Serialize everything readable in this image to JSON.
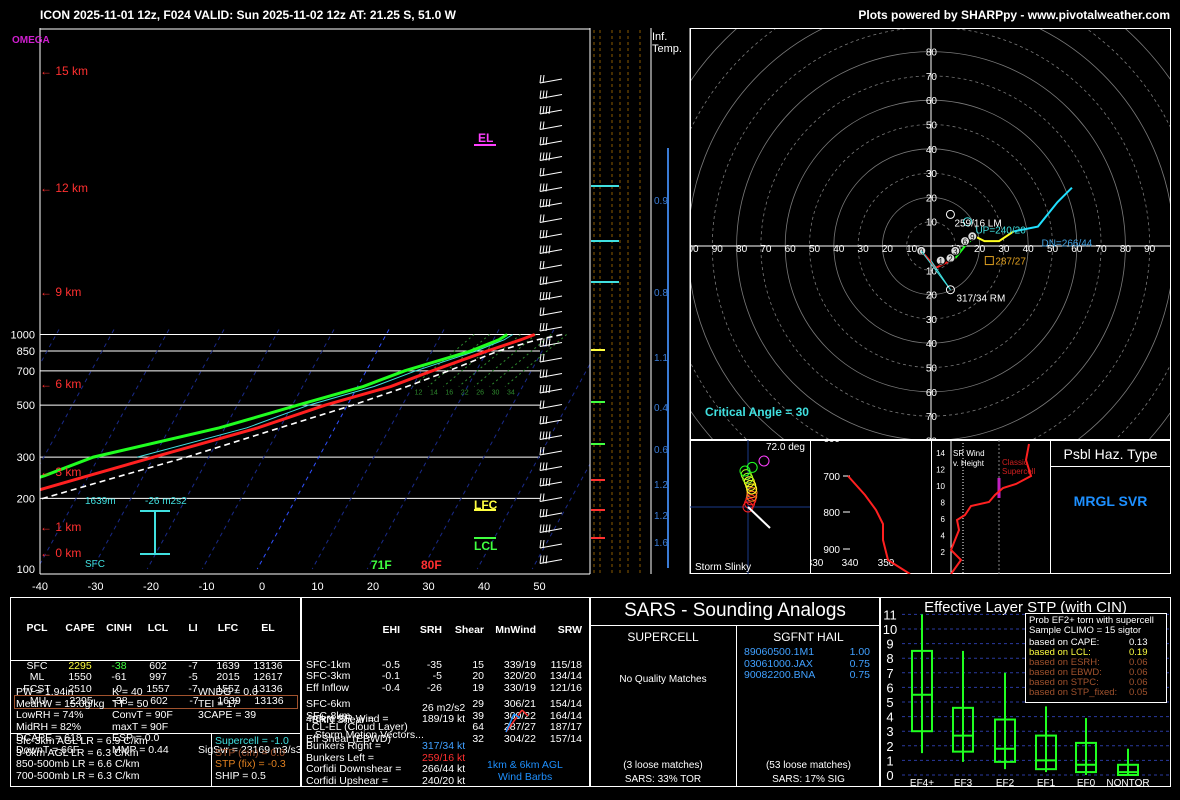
{
  "header": {
    "left": "ICON 2025-11-01 12z, F024  VALID: Sun 2025-11-02 12z  AT: 21.25 S, 51.0 W",
    "right": "Plots powered by SHARPpy - www.pivotalweather.com"
  },
  "skewt": {
    "omega_label": "OMEGA",
    "inf_temp_label": [
      "Inf.",
      "Temp."
    ],
    "pressure_ticks": [
      "100",
      "200",
      "300",
      "500",
      "700",
      "850",
      "1000"
    ],
    "temp_ticks": [
      "-40",
      "-30",
      "-20",
      "-10",
      "0",
      "10",
      "20",
      "30",
      "40",
      "50"
    ],
    "height_labels": [
      "15 km",
      "12 km",
      "9 km",
      "6 km",
      "3 km",
      "1 km",
      "0 km"
    ],
    "el_label": "EL",
    "lfc_label": "LFC",
    "lcl_label": "LCL",
    "sfc_label": "SFC",
    "srh_height": "1639m",
    "srh_value": "-26 m2s2",
    "sfc_td": "71F",
    "sfc_t": "80F",
    "mixing_ratio_labels": [
      "12",
      "14",
      "16",
      "22",
      "26",
      "30",
      "34"
    ],
    "inf_values": [
      "0.9",
      "0.8",
      "1.1",
      "0.4",
      "0.6",
      "1.2",
      "1.2",
      "1.6"
    ]
  },
  "hodograph": {
    "x_ticks_left": [
      "00",
      "90",
      "80",
      "70",
      "60",
      "50",
      "40",
      "30",
      "20",
      "10"
    ],
    "x_ticks_right": [
      "10",
      "20",
      "30",
      "40",
      "50",
      "60",
      "70",
      "80",
      "90",
      "1"
    ],
    "y_ticks_up": [
      "80",
      "70",
      "60",
      "50",
      "40",
      "30",
      "20",
      "10"
    ],
    "y_ticks_down": [
      "10",
      "20",
      "30",
      "40",
      "50",
      "60",
      "70",
      "80"
    ],
    "up_label": "UP=240/20",
    "dn_label": "DN=266/44",
    "lm_label": "259/16 LM",
    "mean_label": "287/27",
    "rm_label": "317/34 RM",
    "critical_angle": "Critical Angle = 30",
    "point_labels": [
      "0",
      "1",
      "2",
      "3",
      "6",
      "9"
    ]
  },
  "storm_slinky": {
    "angle": "72.0 deg",
    "label": "Storm Slinky"
  },
  "theta_panel": {
    "y_ticks": [
      "600",
      "700",
      "800",
      "900"
    ],
    "x_ticks": [
      "330",
      "340",
      "350"
    ]
  },
  "srwind_panel": {
    "title": "SR Wind v. Height",
    "label": "Classic Supercell",
    "y_ticks": [
      "14",
      "12",
      "10",
      "8",
      "6",
      "4",
      "2"
    ]
  },
  "psbl_haz": {
    "title": "Psbl Haz. Type",
    "value": "MRGL SVR"
  },
  "parcels": {
    "headers": [
      "PCL",
      "CAPE",
      "CINH",
      "LCL",
      "LI",
      "LFC",
      "EL"
    ],
    "rows": [
      [
        "SFC",
        "2295",
        "-38",
        "602",
        "-7",
        "1639",
        "13136"
      ],
      [
        "ML",
        "1550",
        "-61",
        "997",
        "-5",
        "2015",
        "12617"
      ],
      [
        "FCST",
        "2510",
        "0",
        "1557",
        "-7",
        "1557",
        "13136"
      ],
      [
        "MU",
        "2295",
        "-38",
        "602",
        "-7",
        "1639",
        "13136"
      ]
    ]
  },
  "indices": {
    "col1": [
      "PW = 1.94in",
      "MeanW = 15.0g/kg",
      "LowRH = 74%",
      "MidRH = 82%",
      "DCAPE = 618",
      "DownT = 66F"
    ],
    "col2": [
      "K = 40",
      "TT = 50",
      "ConvT = 90F",
      "maxT = 90F",
      "ESP = 0.0",
      "MMP = 0.44"
    ],
    "col3": [
      "WNDG = 0.0",
      "TEI = 17",
      "3CAPE = 39",
      "",
      "",
      "SigSvr = 23169 m3/s3"
    ]
  },
  "lapse_rates": [
    "Sfc-3km AGL LR = 6.9 C/km",
    "3-6km AGL LR = 6.3 C/km",
    "850-500mb LR = 6.6 C/km",
    "700-500mb LR = 6.3 C/km"
  ],
  "composite": [
    "Supercell = -1.0",
    "STP (cin) = 0.0",
    "STP (fix) = -0.3",
    "SHIP = 0.5"
  ],
  "kinematics": {
    "headers": [
      "EHI",
      "SRH",
      "Shear",
      "MnWind",
      "SRW"
    ],
    "rows": [
      [
        "SFC-1km",
        "-0.5",
        "-35",
        "15",
        "339/19",
        "115/18"
      ],
      [
        "SFC-3km",
        "-0.1",
        "-5",
        "20",
        "320/20",
        "134/14"
      ],
      [
        "Eff Inflow",
        "-0.4",
        "-26",
        "19",
        "330/19",
        "121/16"
      ],
      [
        "",
        "",
        "",
        "",
        "",
        ""
      ],
      [
        "SFC-6km",
        "",
        "",
        "29",
        "306/21",
        "154/14"
      ],
      [
        "SFC-8km",
        "",
        "",
        "39",
        "300/22",
        "164/14"
      ],
      [
        "LCL-EL (Cloud Layer)",
        "",
        "",
        "64",
        "287/27",
        "187/17"
      ],
      [
        "Eff Shear (EBWD)",
        "",
        "",
        "32",
        "304/22",
        "157/14"
      ]
    ],
    "brn_shear_label": "BRN Shear =",
    "brn_shear": "26 m2/s2",
    "sr_wind_label": "4-6km SR Wind =",
    "sr_wind": "189/19 kt",
    "storm_motion_title": "...Storm Motion Vectors...",
    "motion_labels": [
      "Bunkers Right =",
      "Bunkers Left =",
      "Corfidi Downshear =",
      "Corfidi Upshear ="
    ],
    "motion_values": [
      "317/34 kt",
      "259/16 kt",
      "266/44 kt",
      "240/20 kt"
    ],
    "barbs_label": [
      "1km & 6km AGL",
      "Wind Barbs"
    ]
  },
  "sars": {
    "title": "SARS - Sounding Analogs",
    "supercell_title": "SUPERCELL",
    "hail_title": "SGFNT HAIL",
    "supercell_text": "No Quality Matches",
    "hail_matches": [
      [
        "89060500.1M1",
        "1.00"
      ],
      [
        "03061000.JAX",
        "0.75"
      ],
      [
        "90082200.BNA",
        "0.75"
      ]
    ],
    "supercell_loose": "(3 loose matches)",
    "supercell_tor": "SARS: 33% TOR",
    "hail_loose": "(53 loose matches)",
    "hail_sig": "SARS: 17% SIG"
  },
  "stp": {
    "title": "Effective Layer STP (with CIN)",
    "y_ticks": [
      "0",
      "1",
      "2",
      "3",
      "4",
      "5",
      "6",
      "7",
      "8",
      "9",
      "10",
      "11"
    ],
    "categories": [
      "EF4+",
      "EF3",
      "EF2",
      "EF1",
      "EF0",
      "NONTOR"
    ],
    "box_title": "Prob EF2+ torn with supercell",
    "box_subtitle": "Sample CLIMO = 15 sigtor",
    "prob_rows": [
      [
        "based on CAPE:",
        "0.13"
      ],
      [
        "based on LCL:",
        "0.19"
      ],
      [
        "based on ESRH:",
        "0.06"
      ],
      [
        "based on EBWD:",
        "0.06"
      ],
      [
        "based on STPC:",
        "0.06"
      ],
      [
        "based on STP_fixed:",
        "0.05"
      ]
    ]
  },
  "chart_data": [
    {
      "type": "line",
      "title": "",
      "xlabel": "",
      "ylabel": "",
      "x_axis_ticks": [
        -40,
        -30,
        -20,
        -10,
        0,
        10,
        20,
        30,
        40,
        50
      ],
      "y_axis_ticks_mb": [
        100,
        200,
        300,
        500,
        700,
        850,
        1000
      ],
      "series": [
        {
          "name": "80F",
          "values": [
            [
              1000,
              27
            ],
            [
              950,
              25
            ],
            [
              850,
              20
            ],
            [
              700,
              12
            ],
            [
              600,
              6
            ],
            [
              500,
              -4
            ],
            [
              400,
              -14
            ],
            [
              300,
              -30
            ],
            [
              250,
              -40
            ],
            [
              200,
              -52
            ],
            [
              150,
              -58
            ],
            [
              100,
              -62
            ]
          ]
        },
        {
          "name": "71F",
          "values": [
            [
              1000,
              22
            ],
            [
              950,
              21
            ],
            [
              850,
              17
            ],
            [
              700,
              7
            ],
            [
              600,
              1
            ],
            [
              500,
              -9
            ],
            [
              400,
              -21
            ],
            [
              300,
              -41
            ],
            [
              250,
              -48
            ],
            [
              200,
              -58
            ],
            [
              150,
              -68
            ],
            [
              100,
              -78
            ]
          ]
        }
      ]
    },
    {
      "type": "bar",
      "title": "Effective Layer STP (with CIN)",
      "categories": [
        "EF4+",
        "EF3",
        "EF2",
        "EF1",
        "EF0",
        "NONTOR"
      ],
      "series": [
        {
          "name": "p10",
          "values": [
            1.5,
            0.9,
            0.4,
            0.2,
            0.0,
            0.0
          ]
        },
        {
          "name": "p25",
          "values": [
            3.0,
            1.6,
            0.9,
            0.4,
            0.2,
            0.0
          ]
        },
        {
          "name": "median",
          "values": [
            5.5,
            2.7,
            1.8,
            1.0,
            0.7,
            0.2
          ]
        },
        {
          "name": "p75",
          "values": [
            8.5,
            4.6,
            3.8,
            2.7,
            2.2,
            0.7
          ]
        },
        {
          "name": "p90",
          "values": [
            11.0,
            8.5,
            7.0,
            4.7,
            3.9,
            1.8
          ]
        }
      ],
      "ylim": [
        0,
        11.5
      ]
    }
  ]
}
